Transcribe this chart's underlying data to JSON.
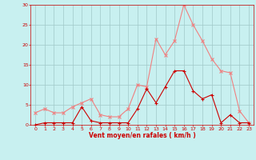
{
  "hours": [
    0,
    1,
    2,
    3,
    4,
    5,
    6,
    7,
    8,
    9,
    10,
    11,
    12,
    13,
    14,
    15,
    16,
    17,
    18,
    19,
    20,
    21,
    22,
    23
  ],
  "rafales": [
    3.0,
    4.0,
    3.0,
    3.0,
    4.5,
    5.5,
    6.5,
    2.5,
    2.0,
    2.0,
    4.0,
    10.0,
    9.5,
    21.5,
    17.5,
    21.0,
    30.0,
    25.0,
    21.0,
    16.5,
    13.5,
    13.0,
    3.5,
    0.5
  ],
  "moyen": [
    0.0,
    0.5,
    0.5,
    0.5,
    0.5,
    4.5,
    1.0,
    0.5,
    0.5,
    0.5,
    0.5,
    4.0,
    9.0,
    5.5,
    9.5,
    13.5,
    13.5,
    8.5,
    6.5,
    7.5,
    0.5,
    2.5,
    0.5,
    0.5
  ],
  "color_rafales": "#f08080",
  "color_moyen": "#cc0000",
  "bg_color": "#c8f0f0",
  "grid_color": "#a0c8c8",
  "text_color": "#cc0000",
  "xlabel": "Vent moyen/en rafales ( km/h )",
  "ylim": [
    0,
    30
  ],
  "yticks": [
    0,
    5,
    10,
    15,
    20,
    25,
    30
  ],
  "xlim": [
    -0.5,
    23.5
  ],
  "xticks": [
    0,
    1,
    2,
    3,
    4,
    5,
    6,
    7,
    8,
    9,
    10,
    11,
    12,
    13,
    14,
    15,
    16,
    17,
    18,
    19,
    20,
    21,
    22,
    23
  ]
}
